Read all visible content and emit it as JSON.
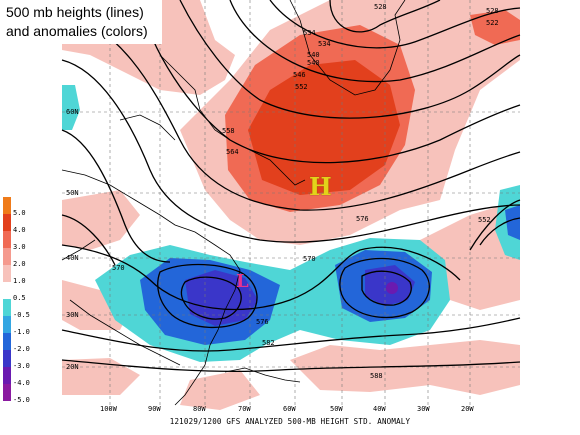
{
  "title": {
    "line1": "500 mb heights (lines)",
    "line2": "and anomalies (colors)"
  },
  "caption": "121029/1200 GFS ANALYZED 500-MB HEIGHT STD. ANOMALY",
  "legend": {
    "entries": [
      {
        "label": "5.0",
        "color": "#ef7b1a"
      },
      {
        "label": "4.0",
        "color": "#e2401d"
      },
      {
        "label": "3.0",
        "color": "#f06a54"
      },
      {
        "label": "2.0",
        "color": "#f59a8e"
      },
      {
        "label": "1.0",
        "color": "#f7c2bb"
      },
      {
        "label": "0.5",
        "color": "#ffffff"
      },
      {
        "label": "-0.5",
        "color": "#4fd6d6"
      },
      {
        "label": "-1.0",
        "color": "#33a6e2"
      },
      {
        "label": "-2.0",
        "color": "#2366d9"
      },
      {
        "label": "-3.0",
        "color": "#3a36c9"
      },
      {
        "label": "-4.0",
        "color": "#6a1ab0"
      },
      {
        "label": "-5.0",
        "color": "#8a1aa0"
      }
    ]
  },
  "longitude_labels": [
    "100W",
    "90W",
    "80W",
    "70W",
    "60W",
    "50W",
    "40W",
    "30W",
    "20W"
  ],
  "latitude_labels": [
    "60N",
    "50N",
    "40N",
    "30N",
    "20N"
  ],
  "contour_labels": [
    "528",
    "534",
    "534",
    "540",
    "546",
    "552",
    "558",
    "564",
    "570",
    "570",
    "576",
    "576",
    "582",
    "588",
    "552",
    "528",
    "522",
    "540"
  ],
  "centers": {
    "high": "H",
    "low": "L"
  },
  "colors": {
    "positive_strong": "#e2401d",
    "positive_mid": "#f06a54",
    "positive_weak": "#f7c2bb",
    "negative_weak": "#4fd6d6",
    "negative_mid": "#2366d9",
    "negative_strong": "#3a36c9",
    "contour": "#000000",
    "coast": "#000000"
  }
}
